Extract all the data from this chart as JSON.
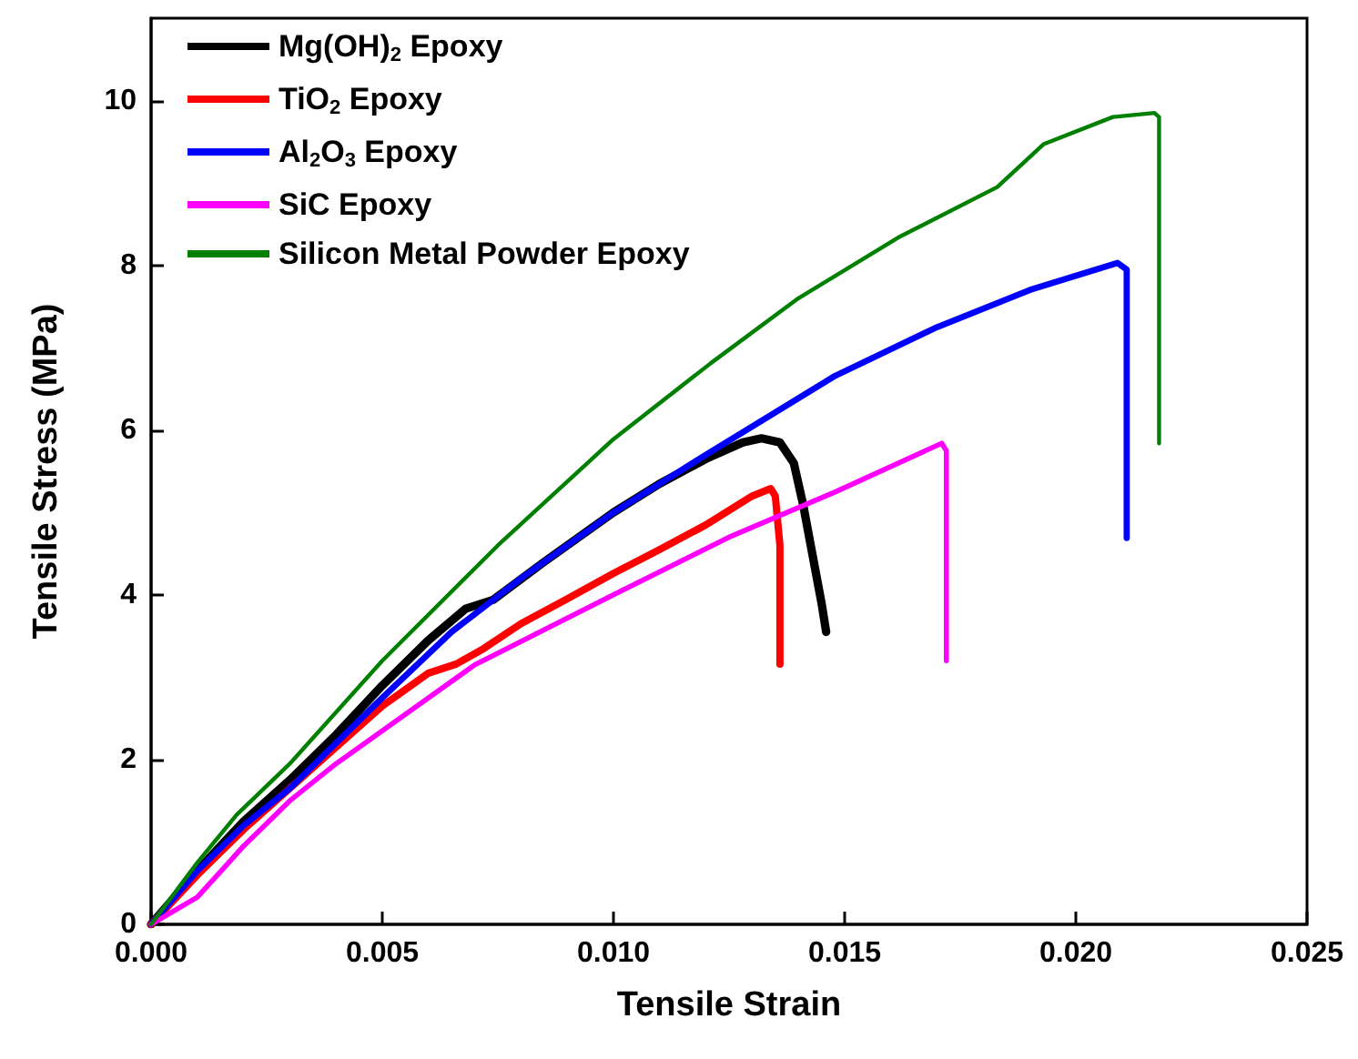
{
  "chart_data": {
    "type": "line",
    "xlabel": "Tensile Strain",
    "ylabel": "Tensile Stress (MPa)",
    "xlim": [
      0,
      0.025
    ],
    "xticks": [
      {
        "value": 0,
        "label": "0.000"
      },
      {
        "value": 0.005,
        "label": "0.005"
      },
      {
        "value": 0.01,
        "label": "0.010"
      },
      {
        "value": 0.015,
        "label": "0.015"
      },
      {
        "value": 0.02,
        "label": "0.020"
      },
      {
        "value": 0.025,
        "label": "0.025"
      }
    ],
    "ylim": [
      0,
      11
    ],
    "yticks": [
      0,
      2,
      4,
      6,
      8,
      10
    ],
    "grid": false,
    "legend": "top left",
    "marker": "none",
    "line_style": "solid",
    "series": [
      {
        "name": "Mg(OH)$_{2}$ Epoxy",
        "color": "#000000",
        "x": [
          0,
          0.001,
          0.002,
          0.003,
          0.004,
          0.005,
          0.006,
          0.0068,
          0.0074,
          0.0085,
          0.01,
          0.011,
          0.012,
          0.0128,
          0.0132,
          0.0136,
          0.0139,
          0.0141,
          0.0143,
          0.0145,
          0.0146
        ],
        "values": [
          0,
          0.65,
          1.25,
          1.75,
          2.3,
          2.9,
          3.45,
          3.83,
          3.94,
          4.4,
          5.0,
          5.35,
          5.65,
          5.85,
          5.9,
          5.85,
          5.6,
          5.1,
          4.5,
          3.9,
          3.55
        ]
      },
      {
        "name": "TiO$_{2}$ Epoxy",
        "color": "#ff0000",
        "x": [
          0,
          0.001,
          0.002,
          0.003,
          0.004,
          0.005,
          0.006,
          0.0066,
          0.0072,
          0.008,
          0.009,
          0.01,
          0.011,
          0.012,
          0.013,
          0.0134,
          0.0135,
          0.0136,
          0.0136
        ],
        "values": [
          0,
          0.6,
          1.15,
          1.65,
          2.15,
          2.65,
          3.05,
          3.16,
          3.35,
          3.65,
          3.95,
          4.26,
          4.55,
          4.85,
          5.2,
          5.29,
          5.2,
          4.6,
          3.16
        ]
      },
      {
        "name": "Al$_{2}$O$_{3}$ Epoxy",
        "color": "#0000ff",
        "x": [
          0,
          0.001,
          0.002,
          0.003,
          0.004,
          0.005,
          0.0065,
          0.008,
          0.01,
          0.012,
          0.0148,
          0.017,
          0.019,
          0.0209,
          0.0211,
          0.0211
        ],
        "values": [
          0,
          0.65,
          1.2,
          1.65,
          2.2,
          2.75,
          3.55,
          4.2,
          5.0,
          5.7,
          6.66,
          7.25,
          7.7,
          8.03,
          7.95,
          4.69
        ]
      },
      {
        "name": "SiC Epoxy",
        "color": "#ff00ff",
        "x": [
          0,
          0.001,
          0.002,
          0.003,
          0.004,
          0.005,
          0.007,
          0.01,
          0.0125,
          0.0148,
          0.0171,
          0.0172,
          0.0172
        ],
        "values": [
          0,
          0.33,
          0.95,
          1.5,
          1.95,
          2.35,
          3.15,
          4.0,
          4.7,
          5.25,
          5.84,
          5.75,
          3.2
        ]
      },
      {
        "name": "Silicon Metal Powder Epoxy",
        "color": "#008000",
        "x": [
          0,
          0.001,
          0.00185,
          0.003,
          0.005,
          0.0075,
          0.01,
          0.0121,
          0.014,
          0.0162,
          0.0183,
          0.0193,
          0.0208,
          0.0217,
          0.0218,
          0.0218
        ],
        "values": [
          0,
          0.75,
          1.33,
          1.95,
          3.2,
          4.6,
          5.89,
          6.81,
          7.6,
          8.35,
          8.95,
          9.47,
          9.8,
          9.85,
          9.8,
          5.84
        ]
      }
    ]
  }
}
